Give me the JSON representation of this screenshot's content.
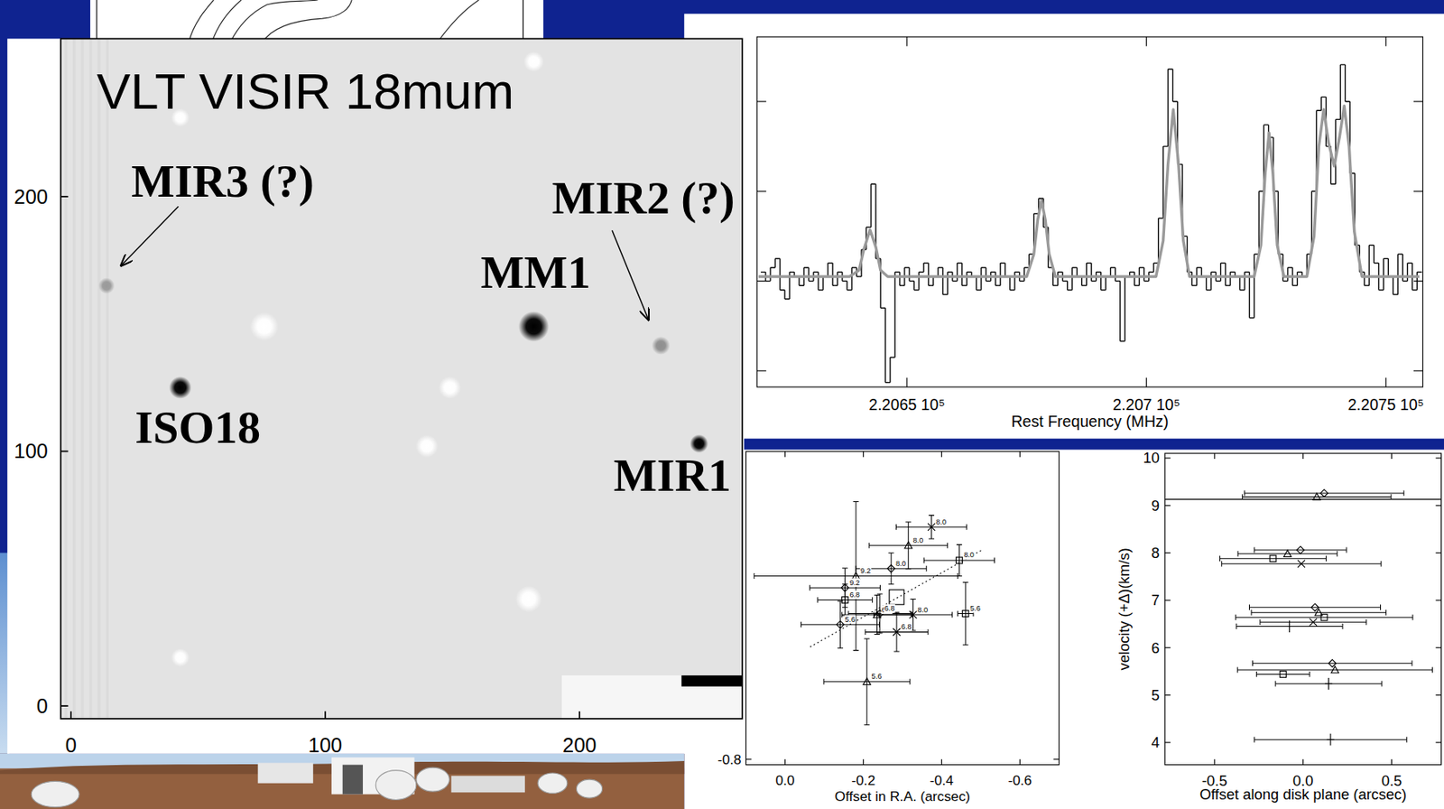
{
  "chart_data": [
    {
      "type": "scatter",
      "title": "VLT VISIR 18mum",
      "marker": "blob",
      "xlim": [
        -4,
        264
      ],
      "ylim": [
        -5,
        262
      ],
      "xticks": [
        0,
        100,
        200
      ],
      "yticks": [
        0,
        100,
        200
      ],
      "series": [
        {
          "x": [
            182,
            43,
            247,
            232,
            14
          ],
          "values": [
            149,
            125,
            103,
            141.5,
            165
          ],
          "size": [
            1.5,
            1.1,
            0.9,
            0.9,
            0.8
          ],
          "colors": [
            "#000000",
            "#000000",
            "#000000",
            "#8f8f8f",
            "#9a9a9a"
          ],
          "labels": [
            "MM1",
            "ISO18",
            "MIR1",
            "MIR2 (?)",
            "MIR3 (?)"
          ]
        },
        {
          "color": "#ffffff",
          "x": [
            76,
            149,
            140,
            180,
            43,
            43,
            182
          ],
          "values": [
            149,
            125,
            102,
            42,
            19,
            231,
            253
          ],
          "size": [
            1.4,
            1.1,
            1.1,
            1.3,
            0.9,
            0.9,
            1.0
          ]
        }
      ]
    },
    {
      "type": "line",
      "xlabel": "Rest Frequency (MHz)",
      "xlim": [
        220618.7,
        220757.7
      ],
      "ylim": [
        -1.18,
        2.72
      ],
      "xticks": [
        {
          "value": 220650,
          "label": "2.2065 10⁵"
        },
        {
          "value": 220700,
          "label": "2.207 10⁵"
        },
        {
          "value": 220750,
          "label": "2.2075 10⁵"
        }
      ],
      "yticks": [
        -1,
        0,
        1,
        2
      ],
      "tick_labels": "x",
      "series": [
        {
          "color": "#000000",
          "line_style": "steps",
          "x": [
            220620,
            220621,
            220622,
            220623,
            220624,
            220625,
            220626,
            220627,
            220628,
            220629,
            220630,
            220631,
            220632,
            220633,
            220634,
            220635,
            220636,
            220637,
            220638,
            220639,
            220640,
            220641,
            220642,
            220643,
            220644,
            220645,
            220646,
            220647,
            220648,
            220649,
            220650,
            220651,
            220652,
            220653,
            220654,
            220655,
            220656,
            220657,
            220658,
            220659,
            220660,
            220661,
            220662,
            220663,
            220664,
            220665,
            220666,
            220667,
            220668,
            220669,
            220670,
            220671,
            220672,
            220673,
            220674,
            220675,
            220676,
            220677,
            220678,
            220679,
            220680,
            220681,
            220682,
            220683,
            220684,
            220685,
            220686,
            220687,
            220688,
            220689,
            220690,
            220691,
            220692,
            220693,
            220694,
            220695,
            220696,
            220697,
            220698,
            220699,
            220700,
            220701,
            220702,
            220703,
            220704,
            220705,
            220706,
            220707,
            220708,
            220709,
            220710,
            220711,
            220712,
            220713,
            220714,
            220715,
            220716,
            220717,
            220718,
            220719,
            220720,
            220721,
            220722,
            220723,
            220724,
            220725,
            220726,
            220727,
            220728,
            220729,
            220730,
            220731,
            220732,
            220733,
            220734,
            220735,
            220736,
            220737,
            220738,
            220739,
            220740,
            220741,
            220742,
            220743,
            220744,
            220745,
            220746,
            220747,
            220748,
            220749,
            220750,
            220751,
            220752,
            220753,
            220754,
            220755,
            220756,
            220757
          ],
          "values": [
            0.1,
            0.0,
            0.15,
            0.25,
            -0.1,
            -0.2,
            0.1,
            0.05,
            -0.05,
            0.15,
            0.0,
            0.1,
            -0.1,
            0.05,
            0.2,
            -0.05,
            0.1,
            0.0,
            -0.1,
            0.15,
            0.05,
            0.35,
            0.6,
            1.08,
            0.25,
            -0.3,
            -1.13,
            -0.85,
            0.1,
            -0.05,
            0.15,
            0.0,
            -0.1,
            0.1,
            0.2,
            -0.05,
            0.05,
            0.15,
            -0.15,
            0.1,
            0.0,
            0.2,
            -0.05,
            0.1,
            0.05,
            -0.1,
            0.15,
            0.0,
            0.1,
            -0.05,
            0.2,
            0.05,
            -0.1,
            0.1,
            0.0,
            0.15,
            0.3,
            0.75,
            0.92,
            0.6,
            0.15,
            -0.05,
            0.1,
            0.0,
            -0.1,
            0.15,
            0.05,
            -0.05,
            0.2,
            0.0,
            0.1,
            -0.1,
            0.05,
            0.15,
            0.0,
            -0.67,
            0.05,
            0.1,
            -0.05,
            0.15,
            0.0,
            0.1,
            0.2,
            0.7,
            1.5,
            2.36,
            2.0,
            1.3,
            0.5,
            0.1,
            -0.05,
            0.15,
            0.05,
            -0.1,
            0.1,
            0.0,
            0.2,
            -0.05,
            0.1,
            0.05,
            -0.1,
            0.1,
            -0.41,
            0.3,
            1.0,
            1.74,
            1.6,
            1.0,
            0.3,
            0.0,
            0.15,
            -0.05,
            0.1,
            0.05,
            0.3,
            1.0,
            1.9,
            2.05,
            1.5,
            1.08,
            1.8,
            2.41,
            2.0,
            1.2,
            0.4,
            0.1,
            -0.05,
            0.4,
            0.2,
            -0.1,
            0.25,
            0.05,
            -0.15,
            0.3,
            0.0,
            0.2,
            -0.1,
            0.1
          ]
        },
        {
          "color": "#9a9a9a",
          "line_style": "solid",
          "x": [
            220619,
            220638,
            220640,
            220641,
            220642.3,
            220643.5,
            220644.5,
            220646,
            220675,
            220676.5,
            220677.3,
            220678.1,
            220678.9,
            220679.7,
            220681,
            220702,
            220703.5,
            220704.5,
            220705.6,
            220706.7,
            220707.7,
            220709,
            220722.5,
            220723.9,
            220724.8,
            220725.6,
            220726.4,
            220727.3,
            220728.7,
            220733.5,
            220735,
            220736,
            220737,
            220738,
            220739.2,
            220740.3,
            220741.3,
            220742.3,
            220743.4,
            220745,
            220757
          ],
          "values": [
            0.05,
            0.05,
            0.12,
            0.35,
            0.57,
            0.38,
            0.12,
            0.05,
            0.05,
            0.3,
            0.68,
            0.9,
            0.68,
            0.3,
            0.05,
            0.05,
            0.45,
            1.3,
            1.91,
            1.3,
            0.45,
            0.05,
            0.05,
            0.4,
            1.2,
            1.65,
            1.2,
            0.4,
            0.05,
            0.05,
            0.5,
            1.5,
            1.91,
            1.55,
            1.28,
            1.6,
            1.95,
            1.5,
            0.55,
            0.05,
            0.05
          ]
        }
      ]
    },
    {
      "type": "scatter",
      "xlabel": "Offset in R.A. (arcsec)",
      "xlim": [
        0.1,
        -0.7
      ],
      "ylim": [
        -0.814,
        -0.014
      ],
      "xticks": [
        {
          "value": 0,
          "label": "0.0"
        },
        -0.2,
        -0.4,
        -0.6
      ],
      "yticks": [
        -0.8
      ],
      "series": [
        {
          "marker": "triangle",
          "x": [
            -0.315,
            -0.181,
            -0.235,
            -0.209
          ],
          "values": [
            -0.254,
            -0.332,
            -0.431,
            -0.602
          ],
          "x_err": [
            0.1,
            0.26,
            0.09,
            0.11
          ],
          "y_err": [
            0.06,
            0.19,
            0.05,
            0.11
          ],
          "labels": [
            "8.0",
            "9.2",
            "6.8",
            "5.6"
          ]
        },
        {
          "marker": "diamond",
          "x": [
            -0.271,
            -0.153,
            -0.242,
            -0.141
          ],
          "values": [
            -0.313,
            -0.362,
            -0.428,
            -0.456
          ],
          "x_err": [
            0.09,
            0.09,
            0.08,
            0.1
          ],
          "y_err": [
            0.04,
            0.05,
            0.05,
            0.06
          ],
          "labels": [
            "8.0",
            "9.2",
            "6.8",
            "5.6"
          ]
        },
        {
          "marker": "square",
          "x": [
            -0.445,
            -0.153,
            -0.461
          ],
          "values": [
            -0.292,
            -0.393,
            -0.428
          ],
          "x_err": [
            0.09,
            0.07,
            0.02
          ],
          "y_err": [
            0.04,
            0.04,
            0.08
          ],
          "labels": [
            "8.0",
            "6.8",
            "5.6"
          ]
        },
        {
          "marker": "cross",
          "x": [
            -0.327,
            -0.285,
            -0.374
          ],
          "values": [
            -0.431,
            -0.475,
            -0.207
          ],
          "x_err": [
            0.1,
            0.08,
            0.09
          ],
          "y_err": [
            0.04,
            0.05,
            0.03
          ],
          "labels": [
            "8.0",
            "6.8",
            "8.0"
          ]
        },
        {
          "marker": "big-square",
          "x": [
            -0.285
          ],
          "values": [
            -0.386
          ]
        },
        {
          "type": "line",
          "line_style": "dotted",
          "x": [
            -0.064,
            -0.506
          ],
          "values": [
            -0.513,
            -0.264
          ]
        }
      ]
    },
    {
      "type": "scatter",
      "xlabel": "Offset along disk plane (arcsec)",
      "ylabel": "velocity (+Δ)(km/s)",
      "xlim": [
        -0.78,
        0.78
      ],
      "ylim": [
        3.53,
        10.1
      ],
      "xticks": [
        -0.5,
        {
          "value": 0,
          "label": "0.0"
        },
        0.5
      ],
      "yticks": [
        4,
        5,
        6,
        7,
        8,
        9,
        10
      ],
      "series": [
        {
          "marker": "triangle",
          "x": [
            0.077,
            -0.088,
            0.088,
            0.18
          ],
          "values": [
            9.18,
            7.98,
            6.74,
            5.53
          ],
          "x_err": [
            0.42,
            0.28,
            0.38,
            0.55
          ]
        },
        {
          "marker": "diamond",
          "x": [
            0.119,
            -0.015,
            0.067,
            0.165
          ],
          "values": [
            9.26,
            8.06,
            6.85,
            5.67
          ],
          "x_err": [
            0.45,
            0.26,
            0.37,
            0.45
          ]
        },
        {
          "marker": "square",
          "x": [
            -0.17,
            0.119,
            -0.113
          ],
          "values": [
            7.88,
            6.64,
            5.44
          ],
          "x_err": [
            0.3,
            0.5,
            0.15
          ]
        },
        {
          "marker": "cross",
          "x": [
            -0.01,
            0.057
          ],
          "values": [
            7.77,
            6.54
          ],
          "x_err": [
            0.45,
            0.3
          ]
        },
        {
          "marker": "plus",
          "x": [
            -0.077,
            0.144,
            0.155
          ],
          "values": [
            6.45,
            5.24,
            4.06
          ],
          "x_err": [
            0.3,
            0.3,
            0.43
          ]
        },
        {
          "type": "hline",
          "values": [
            9.13
          ]
        }
      ]
    }
  ]
}
